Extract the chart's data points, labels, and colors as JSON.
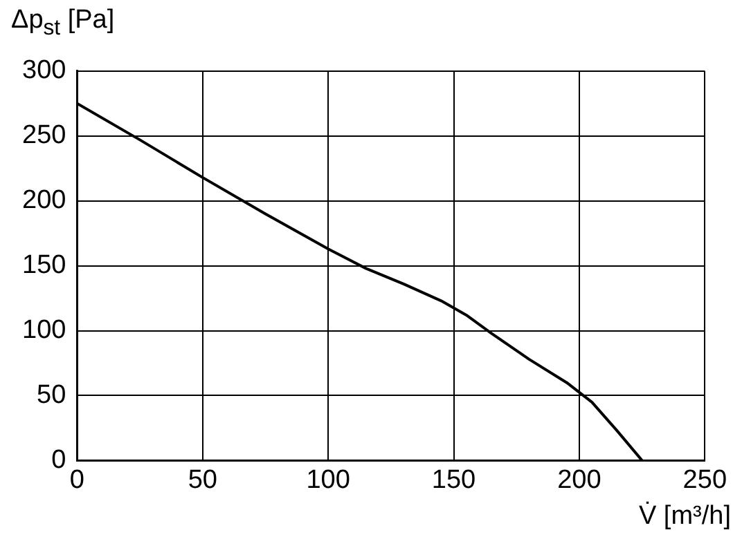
{
  "chart_data": {
    "type": "line",
    "xlabel": "V̇ [m³/h]",
    "ylabel": "Δp$_{st}$ [Pa]",
    "x": [
      0,
      25,
      50,
      75,
      100,
      115,
      130,
      145,
      155,
      165,
      180,
      195,
      205,
      215,
      225
    ],
    "series": [
      {
        "color": "#000000",
        "values": [
          275,
          247,
          218,
          190,
          163,
          148,
          136,
          123,
          112,
          98,
          78,
          60,
          45,
          23,
          0
        ]
      }
    ],
    "xlim": [
      0,
      250
    ],
    "xticks": [
      0,
      50,
      100,
      150,
      200,
      250
    ],
    "ylim": [
      0,
      300
    ],
    "yticks": [
      0,
      50,
      100,
      150,
      200,
      250,
      300
    ],
    "grid": true,
    "legend": false,
    "marker": "none",
    "line_style": "solid"
  }
}
